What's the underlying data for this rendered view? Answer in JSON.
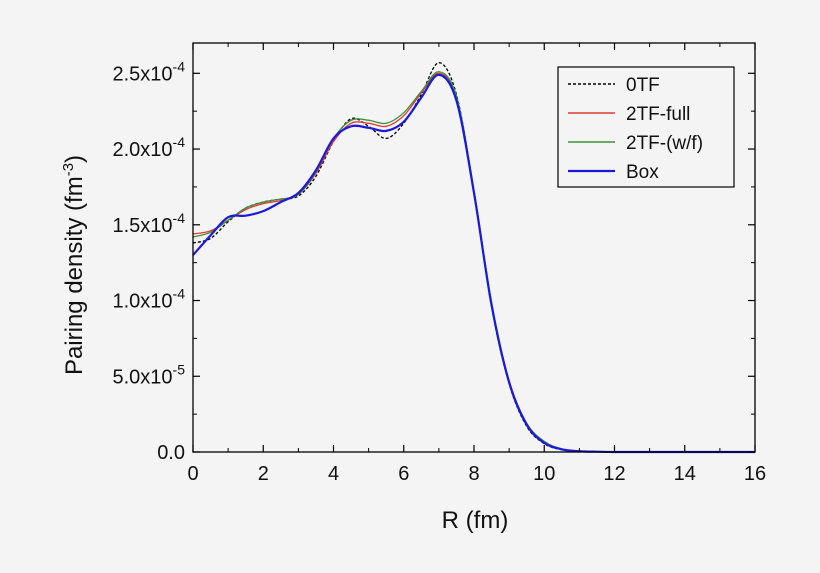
{
  "chart_data": {
    "type": "line",
    "xlabel": "R (fm)",
    "ylabel": {
      "main": "Pairing density (fm",
      "exp": "-3",
      "close": ")"
    },
    "xlim": [
      0,
      16
    ],
    "ylim": [
      0,
      0.00027
    ],
    "x_ticks": [
      {
        "value": 0,
        "label": "0"
      },
      {
        "value": 2,
        "label": "2"
      },
      {
        "value": 4,
        "label": "4"
      },
      {
        "value": 6,
        "label": "6"
      },
      {
        "value": 8,
        "label": "8"
      },
      {
        "value": 10,
        "label": "10"
      },
      {
        "value": 12,
        "label": "12"
      },
      {
        "value": 14,
        "label": "14"
      },
      {
        "value": 16,
        "label": "16"
      }
    ],
    "y_ticks": [
      {
        "value": 0,
        "label": "0.0",
        "exp": ""
      },
      {
        "value": 5e-05,
        "label": "5.0x10",
        "exp": "-5"
      },
      {
        "value": 0.0001,
        "label": "1.0x10",
        "exp": "-4"
      },
      {
        "value": 0.00015,
        "label": "1.5x10",
        "exp": "-4"
      },
      {
        "value": 0.0002,
        "label": "2.0x10",
        "exp": "-4"
      },
      {
        "value": 0.00025,
        "label": "2.5x10",
        "exp": "-4"
      }
    ],
    "grid": false,
    "legend_position": "top-right",
    "series": [
      {
        "name": "0TF",
        "color": "#000000",
        "dash": true,
        "x": [
          0,
          0.5,
          1,
          1.5,
          2,
          2.5,
          3,
          3.5,
          4,
          4.5,
          5,
          5.5,
          6,
          6.5,
          7,
          7.5,
          8,
          8.5,
          9,
          9.5,
          10,
          10.5,
          11,
          11.5,
          12,
          13,
          14,
          15,
          16
        ],
        "y": [
          0.000138,
          0.000141,
          0.000152,
          0.000161,
          0.000165,
          0.000167,
          0.000169,
          0.000182,
          0.000205,
          0.00022,
          0.000215,
          0.000207,
          0.000217,
          0.000236,
          0.000257,
          0.000236,
          0.000172,
          9.6e-05,
          4.5e-05,
          1.7e-05,
          5.5e-06,
          1.5e-06,
          4e-07,
          1e-07,
          0,
          0,
          0,
          0,
          0
        ]
      },
      {
        "name": "2TF-full",
        "color": "#e03a32",
        "dash": false,
        "x": [
          0,
          0.5,
          1,
          1.5,
          2,
          2.5,
          3,
          3.5,
          4,
          4.5,
          5,
          5.5,
          6,
          6.5,
          7,
          7.5,
          8,
          8.5,
          9,
          9.5,
          10,
          10.5,
          11,
          11.5,
          12,
          13,
          14,
          15,
          16
        ],
        "y": [
          0.000144,
          0.000146,
          0.000153,
          0.00016,
          0.000164,
          0.000166,
          0.00017,
          0.000184,
          0.000205,
          0.000217,
          0.000217,
          0.000215,
          0.000222,
          0.000237,
          0.00025,
          0.000234,
          0.000172,
          9.8e-05,
          4.7e-05,
          1.9e-05,
          7e-06,
          2e-06,
          6e-07,
          2e-07,
          0,
          0,
          0,
          0,
          0
        ]
      },
      {
        "name": "2TF-(w/f)",
        "color": "#3f8f3a",
        "dash": false,
        "x": [
          0,
          0.5,
          1,
          1.5,
          2,
          2.5,
          3,
          3.5,
          4,
          4.5,
          5,
          5.5,
          6,
          6.5,
          7,
          7.5,
          8,
          8.5,
          9,
          9.5,
          10,
          10.5,
          11,
          11.5,
          12,
          13,
          14,
          15,
          16
        ],
        "y": [
          0.000142,
          0.000145,
          0.000153,
          0.000161,
          0.000165,
          0.000167,
          0.00017,
          0.000185,
          0.000207,
          0.000219,
          0.000219,
          0.000217,
          0.000224,
          0.000238,
          0.000251,
          0.000235,
          0.000173,
          9.9e-05,
          4.7e-05,
          1.9e-05,
          7e-06,
          2e-06,
          6e-07,
          2e-07,
          0,
          0,
          0,
          0,
          0
        ]
      },
      {
        "name": "Box",
        "color": "#1a1adb",
        "dash": false,
        "x": [
          0,
          0.5,
          1,
          1.5,
          2,
          2.5,
          3,
          3.5,
          4,
          4.5,
          5,
          5.5,
          6,
          6.5,
          7,
          7.5,
          8,
          8.5,
          9,
          9.5,
          10,
          10.5,
          11,
          11.5,
          12,
          13,
          14,
          15,
          16
        ],
        "y": [
          0.00013,
          0.000143,
          0.000155,
          0.000156,
          0.000159,
          0.000165,
          0.000171,
          0.000186,
          0.000207,
          0.000215,
          0.000214,
          0.000212,
          0.000218,
          0.000234,
          0.000249,
          0.000232,
          0.000171,
          9.7e-05,
          4.6e-05,
          1.8e-05,
          6e-06,
          1.8e-06,
          5e-07,
          2e-07,
          0,
          0,
          0,
          0,
          0
        ]
      }
    ]
  }
}
